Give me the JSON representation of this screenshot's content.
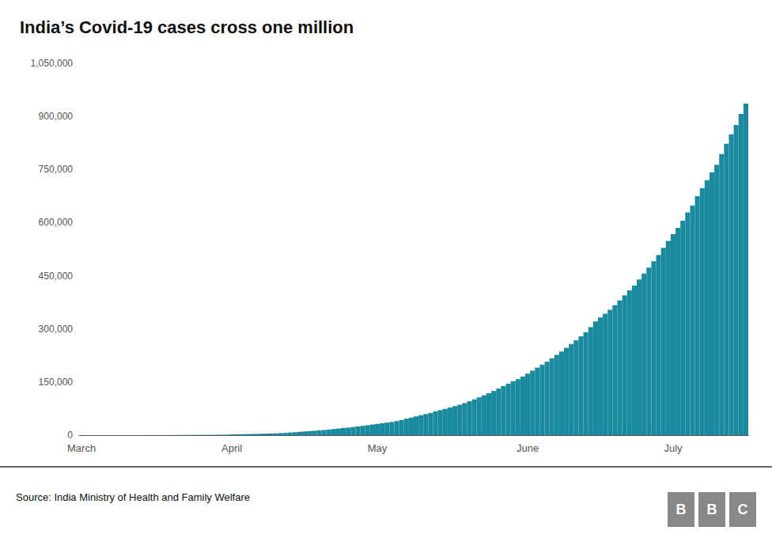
{
  "chart_data": {
    "type": "bar",
    "title": "India’s Covid-19 cases cross one million",
    "annotations": [
      "Source: India Ministry of Health and Family Welfare",
      "BBC"
    ],
    "color": "#1a8a9e",
    "grid": false,
    "ylim": [
      0,
      1050000
    ],
    "yticks": [
      0,
      {
        "value": 150000,
        "label": "150,000"
      },
      {
        "value": 300000,
        "label": "300,000"
      },
      {
        "value": 450000,
        "label": "450,000"
      },
      {
        "value": 600000,
        "label": "600,000"
      },
      {
        "value": 750000,
        "label": "750,000"
      },
      {
        "value": 900000,
        "label": "900,000"
      },
      {
        "value": 1050000,
        "label": "1,050,000"
      }
    ],
    "categories": [
      "March",
      null,
      null,
      null,
      null,
      null,
      null,
      null,
      null,
      null,
      null,
      null,
      null,
      null,
      null,
      null,
      null,
      null,
      null,
      null,
      null,
      null,
      null,
      null,
      null,
      null,
      null,
      null,
      null,
      null,
      null,
      "April",
      null,
      null,
      null,
      null,
      null,
      null,
      null,
      null,
      null,
      null,
      null,
      null,
      null,
      null,
      null,
      null,
      null,
      null,
      null,
      null,
      null,
      null,
      null,
      null,
      null,
      null,
      null,
      null,
      null,
      "May",
      null,
      null,
      null,
      null,
      null,
      null,
      null,
      null,
      null,
      null,
      null,
      null,
      null,
      null,
      null,
      null,
      null,
      null,
      null,
      null,
      null,
      null,
      null,
      null,
      null,
      null,
      null,
      null,
      null,
      null,
      "June",
      null,
      null,
      null,
      null,
      null,
      null,
      null,
      null,
      null,
      null,
      null,
      null,
      null,
      null,
      null,
      null,
      null,
      null,
      null,
      null,
      null,
      null,
      null,
      null,
      null,
      null,
      null,
      null,
      null,
      "July",
      null,
      null,
      null,
      null,
      null,
      null,
      null,
      null,
      null,
      null,
      null,
      null,
      null,
      null,
      null
    ],
    "values": [
      0,
      0,
      0,
      1,
      1,
      2,
      3,
      5,
      7,
      17,
      29,
      39,
      56,
      82,
      107,
      114,
      151,
      195,
      244,
      330,
      396,
      499,
      606,
      694,
      834,
      873,
      979,
      1024,
      1071,
      1251,
      1397,
      1998,
      2543,
      2567,
      2902,
      3374,
      3577,
      3981,
      4281,
      4789,
      5194,
      5865,
      6412,
      7447,
      8356,
      9352,
      10453,
      11487,
      12380,
      13430,
      14378,
      15712,
      17265,
      18601,
      20080,
      21393,
      23077,
      24530,
      26283,
      27892,
      29974,
      31787,
      33610,
      35365,
      37257,
      39699,
      42505,
      46437,
      49400,
      52987,
      56342,
      59662,
      62808,
      67152,
      70768,
      74281,
      78003,
      81970,
      85940,
      90648,
      95698,
      101139,
      106750,
      112359,
      118226,
      124794,
      131423,
      138536,
      145380,
      152474,
      158086,
      165386,
      173763,
      182143,
      190535,
      198706,
      207191,
      216919,
      226770,
      236184,
      246622,
      257486,
      267728,
      279013,
      290401,
      304892,
      320922,
      332424,
      343091,
      354065,
      366946,
      380532,
      395048,
      408645,
      422188,
      439462,
      456115,
      473105,
      491170,
      508953,
      528859,
      548318,
      567536,
      585493,
      605220,
      628640,
      648315,
      674515,
      697413,
      719664,
      742417,
      763732,
      793802,
      822603,
      849553,
      875698,
      906752,
      936181
    ]
  }
}
